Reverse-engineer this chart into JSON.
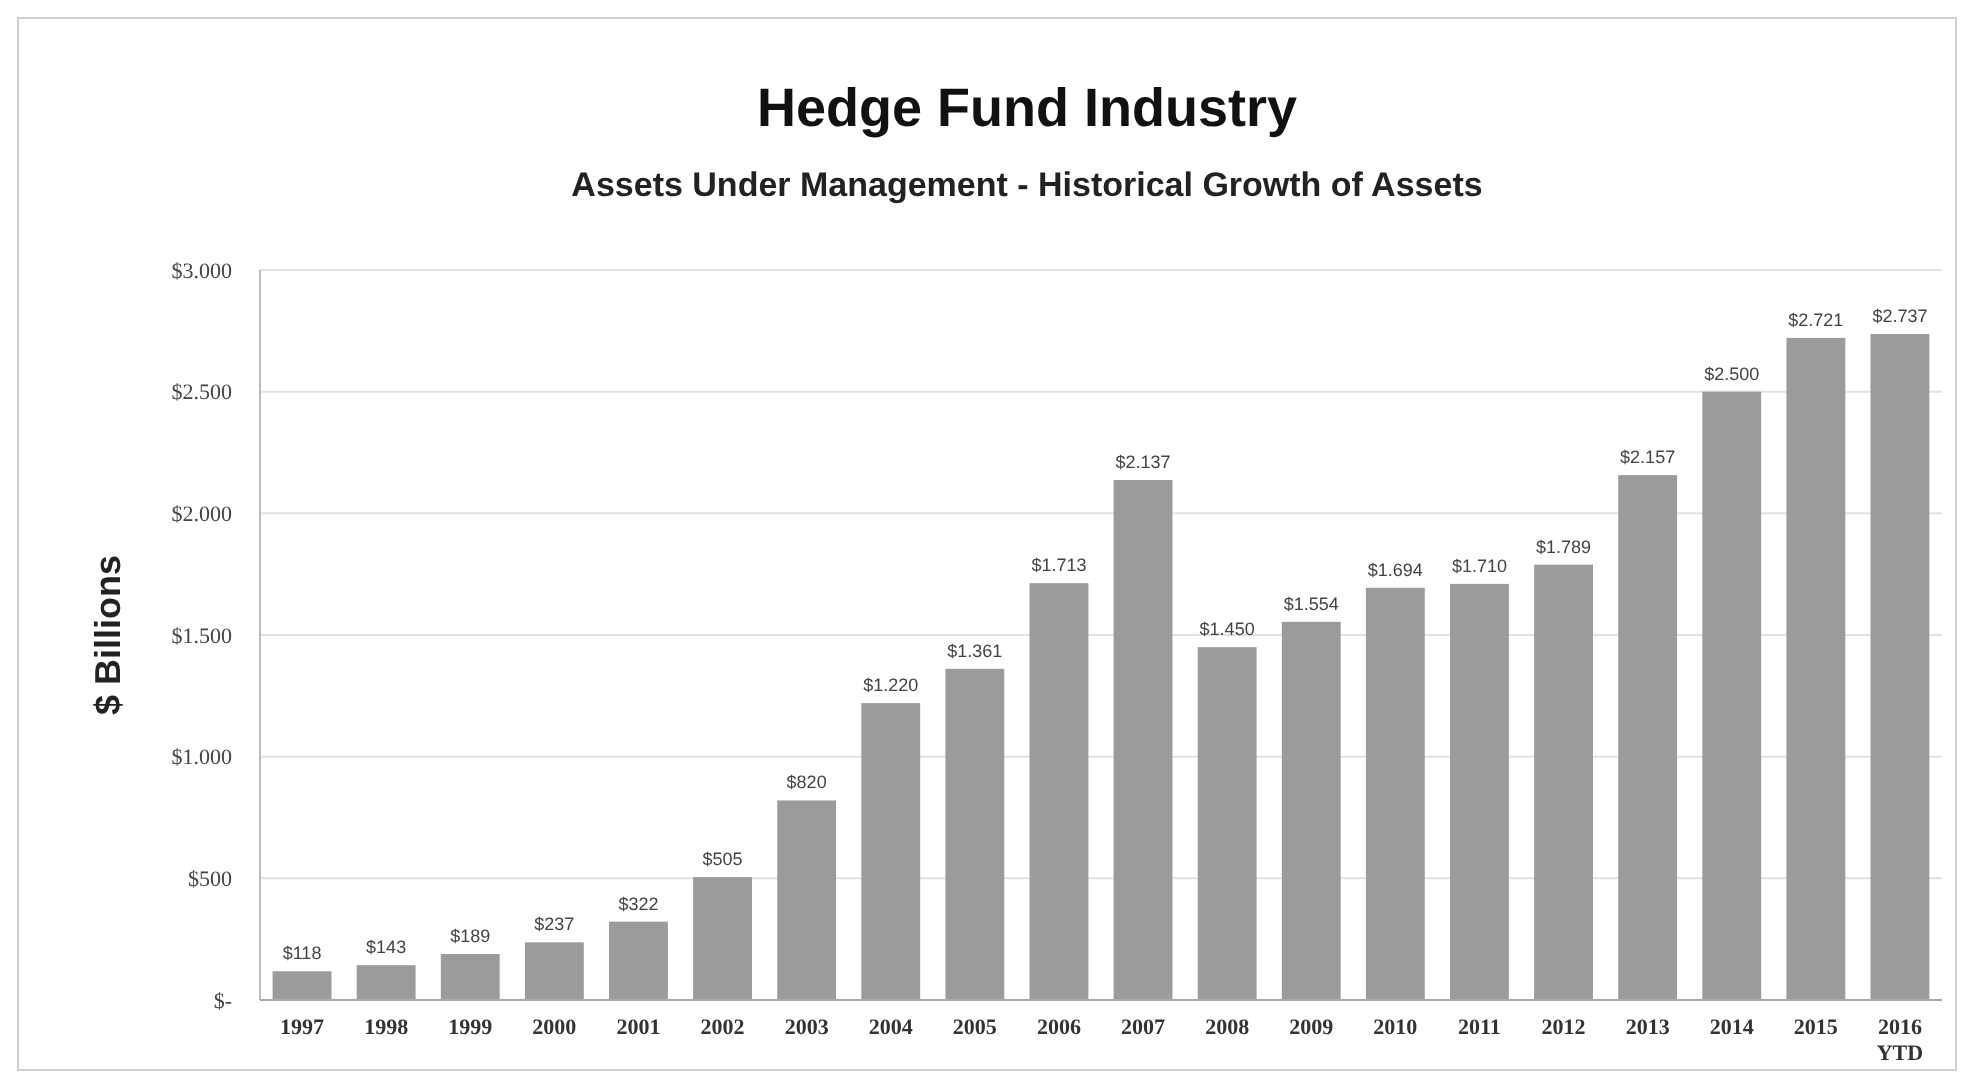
{
  "chart_data": {
    "type": "bar",
    "title": "Hedge Fund Industry",
    "subtitle": "Assets Under Management - Historical Growth of Assets",
    "ylabel": "$ Billions",
    "categories": [
      "1997",
      "1998",
      "1999",
      "2000",
      "2001",
      "2002",
      "2003",
      "2004",
      "2005",
      "2006",
      "2007",
      "2008",
      "2009",
      "2010",
      "2011",
      "2012",
      "2013",
      "2014",
      "2015",
      "2016 YTD"
    ],
    "values": [
      118,
      143,
      189,
      237,
      322,
      505,
      820,
      1220,
      1361,
      1713,
      2137,
      1450,
      1554,
      1694,
      1710,
      1789,
      2157,
      2500,
      2721,
      2737
    ],
    "value_labels": [
      "$118",
      "$143",
      "$189",
      "$237",
      "$322",
      "$505",
      "$820",
      "$1.220",
      "$1.361",
      "$1.713",
      "$2.137",
      "$1.450",
      "$1.554",
      "$1.694",
      "$1.710",
      "$1.789",
      "$2.157",
      "$2.500",
      "$2.721",
      "$2.737"
    ],
    "color": "#9b9b9b",
    "ylim": [
      0,
      3000
    ],
    "yticks": [
      {
        "value": 0,
        "label": "$-"
      },
      {
        "value": 500,
        "label": "$500"
      },
      {
        "value": 1000,
        "label": "$1.000"
      },
      {
        "value": 1500,
        "label": "$1.500"
      },
      {
        "value": 2000,
        "label": "$2.000"
      },
      {
        "value": 2500,
        "label": "$2.500"
      },
      {
        "value": 3000,
        "label": "$3.000"
      }
    ],
    "grid": "y"
  }
}
